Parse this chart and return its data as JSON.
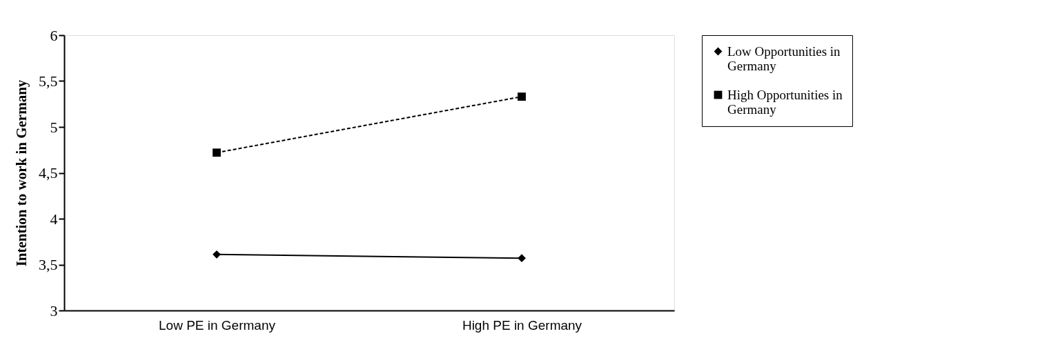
{
  "chart_data": {
    "type": "line",
    "ylabel": "Intention to work in Germany",
    "categories": [
      "Low PE in Germany",
      "High PE in Germany"
    ],
    "series": [
      {
        "name": "Low Opportunities in Germany",
        "color": "#000000",
        "marker": "diamond",
        "line_style": "solid",
        "values": [
          3.61,
          3.57
        ]
      },
      {
        "name": "High Opportunities in Germany",
        "color": "#000000",
        "marker": "square",
        "line_style": "dashed",
        "values": [
          4.72,
          5.33
        ]
      }
    ],
    "ylim": [
      3,
      6
    ],
    "yticks": [
      3,
      {
        "value": 3.5,
        "label": "3,5"
      },
      4,
      {
        "value": 4.5,
        "label": "4,5"
      },
      5,
      {
        "value": 5.5,
        "label": "5,5"
      },
      6
    ],
    "grid": false,
    "legend": "right"
  }
}
